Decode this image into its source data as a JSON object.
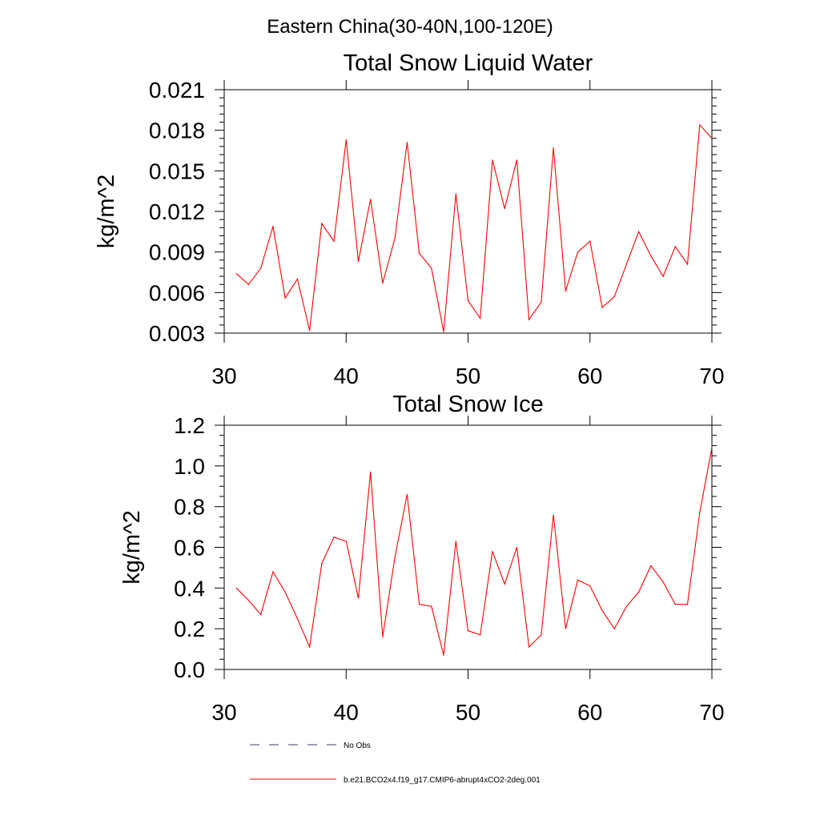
{
  "suptitle": "Eastern China(30-40N,100-120E)",
  "chart_data": [
    {
      "type": "line",
      "title": "Total Snow Liquid Water",
      "xlabel": "",
      "ylabel": "kg/m^2",
      "xlim": [
        30,
        70
      ],
      "ylim": [
        0.003,
        0.021
      ],
      "xticks": [
        "30",
        "40",
        "50",
        "60",
        "70"
      ],
      "yticks": [
        "0.003",
        "0.006",
        "0.009",
        "0.012",
        "0.015",
        "0.018",
        "0.021"
      ],
      "x": [
        31,
        32,
        33,
        34,
        35,
        36,
        37,
        38,
        39,
        40,
        41,
        42,
        43,
        44,
        45,
        46,
        47,
        48,
        49,
        50,
        51,
        52,
        53,
        54,
        55,
        56,
        57,
        58,
        59,
        60,
        61,
        62,
        63,
        64,
        65,
        66,
        67,
        68,
        69,
        70
      ],
      "series": [
        {
          "name": "b.e21.BCO2x4.f19_g17.CMIP6-abrupt4xCO2-2deg.001",
          "color": "#ff0000",
          "values": [
            0.0074,
            0.0066,
            0.0078,
            0.0109,
            0.0056,
            0.007,
            0.0032,
            0.0111,
            0.0098,
            0.0173,
            0.0083,
            0.0129,
            0.0067,
            0.01,
            0.0171,
            0.0089,
            0.0078,
            0.0031,
            0.0133,
            0.0054,
            0.0041,
            0.0158,
            0.0122,
            0.0158,
            0.004,
            0.0053,
            0.0167,
            0.0061,
            0.009,
            0.0098,
            0.0049,
            0.0057,
            0.0081,
            0.0105,
            0.0087,
            0.0072,
            0.0094,
            0.0081,
            0.0184,
            0.0174
          ]
        }
      ]
    },
    {
      "type": "line",
      "title": "Total Snow Ice",
      "xlabel": "",
      "ylabel": "kg/m^2",
      "xlim": [
        30,
        70
      ],
      "ylim": [
        0.0,
        1.2
      ],
      "xticks": [
        "30",
        "40",
        "50",
        "60",
        "70"
      ],
      "yticks": [
        "0.0",
        "0.2",
        "0.4",
        "0.6",
        "0.8",
        "1.0",
        "1.2"
      ],
      "x": [
        31,
        32,
        33,
        34,
        35,
        36,
        37,
        38,
        39,
        40,
        41,
        42,
        43,
        44,
        45,
        46,
        47,
        48,
        49,
        50,
        51,
        52,
        53,
        54,
        55,
        56,
        57,
        58,
        59,
        60,
        61,
        62,
        63,
        64,
        65,
        66,
        67,
        68,
        69,
        70
      ],
      "series": [
        {
          "name": "b.e21.BCO2x4.f19_g17.CMIP6-abrupt4xCO2-2deg.001",
          "color": "#ff0000",
          "values": [
            0.4,
            0.34,
            0.27,
            0.48,
            0.38,
            0.25,
            0.11,
            0.52,
            0.65,
            0.63,
            0.35,
            0.97,
            0.16,
            0.55,
            0.86,
            0.32,
            0.31,
            0.07,
            0.63,
            0.19,
            0.17,
            0.58,
            0.42,
            0.6,
            0.11,
            0.17,
            0.76,
            0.2,
            0.44,
            0.41,
            0.29,
            0.2,
            0.31,
            0.38,
            0.51,
            0.43,
            0.32,
            0.32,
            0.77,
            1.09
          ]
        }
      ]
    }
  ],
  "legend": [
    {
      "label": "No Obs",
      "style": "dashed",
      "color": "#3b3b6b"
    },
    {
      "label": "b.e21.BCO2x4.f19_g17.CMIP6-abrupt4xCO2-2deg.001",
      "style": "solid",
      "color": "#ff0000"
    }
  ]
}
